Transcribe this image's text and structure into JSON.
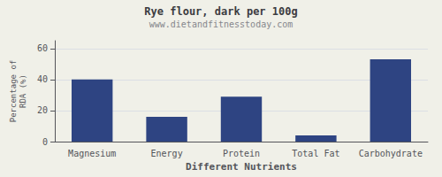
{
  "chart_data": {
    "type": "bar",
    "title": "Rye flour, dark per 100g",
    "subtitle": "www.dietandfitnesstoday.com",
    "xlabel": "Different Nutrients",
    "ylabel": "Percentage of\nRDA (%)",
    "categories": [
      "Magnesium",
      "Energy",
      "Protein",
      "Total Fat",
      "Carbohydrate"
    ],
    "values": [
      40,
      16,
      29,
      4,
      53
    ],
    "color": "#2e4482",
    "ylim": [
      0,
      65
    ],
    "yticks": [
      0,
      20,
      40,
      60
    ],
    "grid": true
  }
}
